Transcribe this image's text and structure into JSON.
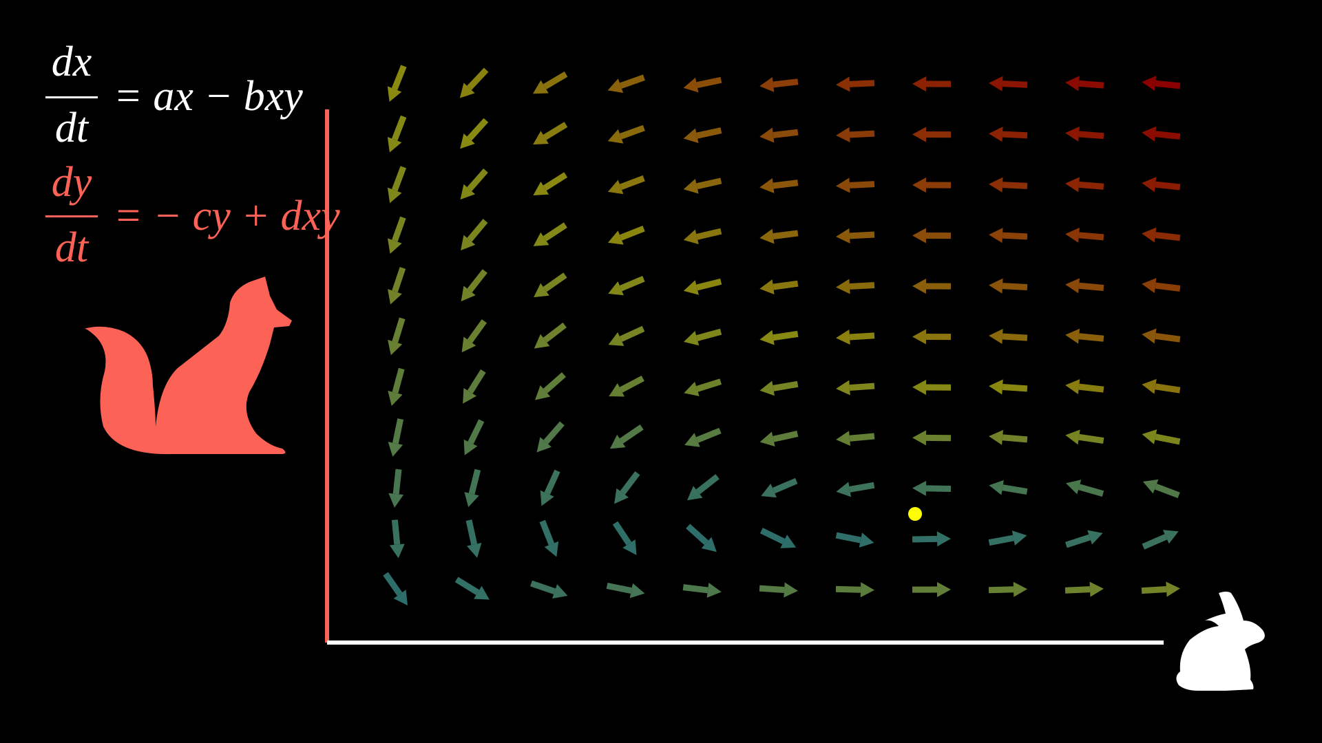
{
  "equations": [
    {
      "numerator": "dx",
      "denominator": "dt",
      "rhs": "= ax − bxy"
    },
    {
      "numerator": "dy",
      "denominator": "dt",
      "rhs": "= − cy + dxy"
    }
  ]
}
